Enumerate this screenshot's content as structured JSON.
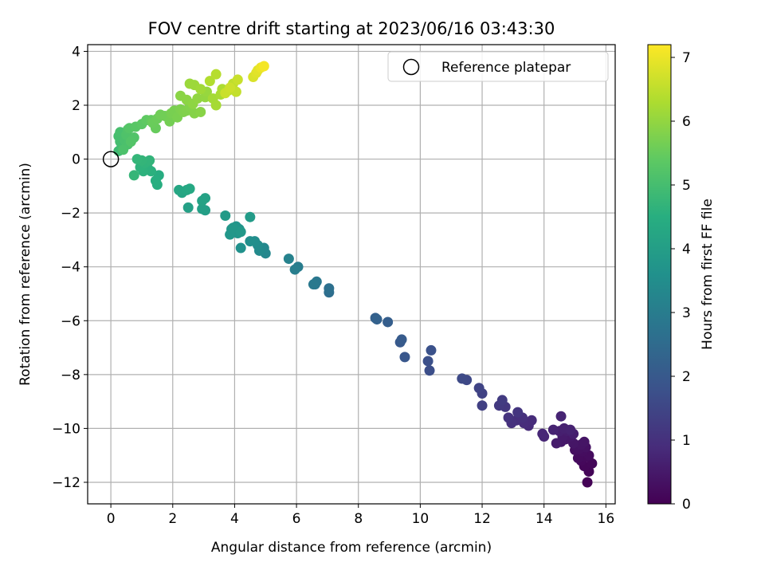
{
  "chart_data": {
    "type": "scatter",
    "title": "FOV centre drift starting at 2023/06/16 03:43:30",
    "xlabel": "Angular distance from reference (arcmin)",
    "ylabel": "Rotation from reference (arcmin)",
    "xlim": [
      -0.75,
      16.3
    ],
    "ylim": [
      -12.8,
      4.25
    ],
    "xticks": [
      0,
      2,
      4,
      6,
      8,
      10,
      12,
      14,
      16
    ],
    "yticks": [
      -12,
      -10,
      -8,
      -6,
      -4,
      -2,
      0,
      2,
      4
    ],
    "grid": true,
    "legend": {
      "entries": [
        "Reference platepar"
      ],
      "placement": "top-right"
    },
    "reference_point": {
      "x": 0,
      "y": 0,
      "marker": "open-circle"
    },
    "colorbar": {
      "label": "Hours from first FF file",
      "colormap": "viridis",
      "range": [
        0,
        7.2
      ],
      "ticks": [
        0,
        1,
        2,
        3,
        4,
        5,
        6,
        7
      ]
    },
    "series": [
      {
        "points": [
          [
            15.4,
            -12.0,
            0.05
          ],
          [
            15.45,
            -11.6,
            0.08
          ],
          [
            15.3,
            -11.4,
            0.1
          ],
          [
            15.55,
            -11.3,
            0.12
          ],
          [
            15.2,
            -11.2,
            0.15
          ],
          [
            15.35,
            -11.05,
            0.18
          ],
          [
            15.1,
            -11.1,
            0.2
          ],
          [
            15.45,
            -11.0,
            0.22
          ],
          [
            15.25,
            -10.85,
            0.25
          ],
          [
            15.0,
            -10.8,
            0.28
          ],
          [
            15.15,
            -10.75,
            0.3
          ],
          [
            15.35,
            -10.7,
            0.32
          ],
          [
            15.05,
            -10.65,
            0.35
          ],
          [
            15.2,
            -10.6,
            0.38
          ],
          [
            15.3,
            -10.5,
            0.4
          ],
          [
            14.95,
            -10.55,
            0.42
          ],
          [
            14.7,
            -10.4,
            0.45
          ],
          [
            14.85,
            -10.3,
            0.48
          ],
          [
            14.55,
            -10.5,
            0.5
          ],
          [
            14.6,
            -10.3,
            0.52
          ],
          [
            14.4,
            -10.55,
            0.55
          ],
          [
            14.75,
            -10.1,
            0.58
          ],
          [
            14.95,
            -10.2,
            0.6
          ],
          [
            14.5,
            -10.1,
            0.62
          ],
          [
            14.65,
            -10.0,
            0.65
          ],
          [
            14.85,
            -10.05,
            0.68
          ],
          [
            14.3,
            -10.05,
            0.7
          ],
          [
            14.55,
            -9.55,
            0.72
          ],
          [
            14.0,
            -10.3,
            0.75
          ],
          [
            13.95,
            -10.2,
            0.78
          ],
          [
            13.5,
            -9.9,
            0.85
          ],
          [
            13.6,
            -9.7,
            0.88
          ],
          [
            13.35,
            -9.8,
            0.9
          ],
          [
            13.1,
            -9.7,
            0.95
          ],
          [
            13.3,
            -9.6,
            0.97
          ],
          [
            12.95,
            -9.8,
            1.0
          ],
          [
            12.85,
            -9.6,
            1.05
          ],
          [
            13.15,
            -9.4,
            1.1
          ],
          [
            12.75,
            -9.2,
            1.15
          ],
          [
            12.55,
            -9.15,
            1.2
          ],
          [
            12.65,
            -8.95,
            1.25
          ],
          [
            12.0,
            -9.15,
            1.35
          ],
          [
            12.0,
            -8.7,
            1.4
          ],
          [
            11.9,
            -8.5,
            1.45
          ],
          [
            11.5,
            -8.2,
            1.55
          ],
          [
            11.35,
            -8.15,
            1.6
          ],
          [
            10.3,
            -7.85,
            1.7
          ],
          [
            10.25,
            -7.5,
            1.75
          ],
          [
            10.35,
            -7.1,
            1.8
          ],
          [
            9.5,
            -7.35,
            1.95
          ],
          [
            9.35,
            -6.8,
            2.0
          ],
          [
            9.4,
            -6.7,
            2.05
          ],
          [
            8.95,
            -6.05,
            2.15
          ],
          [
            8.55,
            -5.9,
            2.2
          ],
          [
            8.6,
            -5.95,
            2.25
          ],
          [
            7.05,
            -4.95,
            2.6
          ],
          [
            7.05,
            -4.8,
            2.65
          ],
          [
            6.6,
            -4.65,
            2.8
          ],
          [
            6.65,
            -4.55,
            2.85
          ],
          [
            6.55,
            -4.65,
            2.9
          ],
          [
            6.05,
            -4.0,
            3.0
          ],
          [
            5.95,
            -4.1,
            3.05
          ],
          [
            5.75,
            -3.7,
            3.15
          ],
          [
            5.0,
            -3.5,
            3.3
          ],
          [
            4.95,
            -3.3,
            3.35
          ],
          [
            4.8,
            -3.4,
            3.4
          ],
          [
            4.75,
            -3.2,
            3.45
          ],
          [
            4.65,
            -3.05,
            3.5
          ],
          [
            4.5,
            -3.05,
            3.55
          ],
          [
            4.2,
            -3.3,
            3.6
          ],
          [
            4.15,
            -2.6,
            3.65
          ],
          [
            4.05,
            -2.5,
            3.7
          ],
          [
            4.1,
            -2.75,
            3.72
          ],
          [
            3.9,
            -2.6,
            3.75
          ],
          [
            3.85,
            -2.8,
            3.78
          ],
          [
            3.95,
            -2.55,
            3.8
          ],
          [
            4.2,
            -2.7,
            3.82
          ],
          [
            3.7,
            -2.1,
            3.88
          ],
          [
            4.5,
            -2.15,
            3.9
          ],
          [
            3.05,
            -1.9,
            4.0
          ],
          [
            2.95,
            -1.85,
            4.02
          ],
          [
            2.5,
            -1.8,
            4.05
          ],
          [
            3.05,
            -1.45,
            4.1
          ],
          [
            2.95,
            -1.55,
            4.12
          ],
          [
            2.3,
            -1.25,
            4.2
          ],
          [
            2.2,
            -1.15,
            4.25
          ],
          [
            2.45,
            -1.15,
            4.28
          ],
          [
            2.55,
            -1.1,
            4.3
          ],
          [
            1.55,
            -0.6,
            4.45
          ],
          [
            1.5,
            -0.95,
            4.48
          ],
          [
            1.45,
            -0.8,
            4.5
          ],
          [
            1.3,
            -0.45,
            4.55
          ],
          [
            1.2,
            -0.35,
            4.58
          ],
          [
            1.05,
            -0.45,
            4.6
          ],
          [
            0.95,
            -0.3,
            4.62
          ],
          [
            1.1,
            -0.15,
            4.65
          ],
          [
            1.25,
            -0.05,
            4.68
          ],
          [
            1.0,
            -0.05,
            4.7
          ],
          [
            0.85,
            -0.0,
            4.72
          ],
          [
            0.75,
            -0.6,
            4.74
          ],
          [
            0.25,
            0.3,
            4.9
          ],
          [
            0.35,
            0.45,
            4.95
          ],
          [
            0.3,
            0.65,
            5.0
          ],
          [
            0.25,
            0.85,
            5.02
          ],
          [
            0.3,
            1.0,
            5.05
          ],
          [
            0.45,
            0.7,
            5.08
          ],
          [
            0.55,
            0.55,
            5.1
          ],
          [
            0.4,
            0.35,
            5.12
          ],
          [
            0.5,
            0.9,
            5.15
          ],
          [
            0.55,
            1.1,
            5.18
          ],
          [
            0.75,
            0.8,
            5.2
          ],
          [
            0.65,
            0.65,
            5.22
          ],
          [
            0.6,
            1.15,
            5.25
          ],
          [
            0.8,
            1.2,
            5.3
          ],
          [
            1.0,
            1.3,
            5.35
          ],
          [
            1.15,
            1.45,
            5.4
          ],
          [
            1.3,
            1.45,
            5.45
          ],
          [
            1.45,
            1.15,
            5.5
          ],
          [
            1.35,
            1.35,
            5.52
          ],
          [
            1.5,
            1.5,
            5.55
          ],
          [
            1.6,
            1.65,
            5.6
          ],
          [
            1.75,
            1.6,
            5.62
          ],
          [
            1.9,
            1.4,
            5.65
          ],
          [
            1.95,
            1.7,
            5.68
          ],
          [
            2.05,
            1.8,
            5.7
          ],
          [
            2.15,
            1.55,
            5.72
          ],
          [
            2.25,
            1.85,
            5.75
          ],
          [
            2.35,
            1.75,
            5.78
          ],
          [
            2.45,
            1.8,
            5.8
          ],
          [
            2.55,
            1.95,
            5.82
          ],
          [
            2.7,
            1.7,
            5.85
          ],
          [
            2.9,
            1.75,
            5.88
          ],
          [
            2.25,
            2.35,
            5.9
          ],
          [
            2.45,
            2.2,
            5.92
          ],
          [
            2.65,
            2.05,
            5.95
          ],
          [
            2.8,
            2.25,
            5.98
          ],
          [
            3.05,
            2.3,
            6.0
          ],
          [
            3.1,
            2.5,
            6.05
          ],
          [
            2.55,
            2.8,
            6.1
          ],
          [
            2.7,
            2.75,
            6.12
          ],
          [
            2.9,
            2.6,
            6.15
          ],
          [
            3.3,
            2.25,
            6.2
          ],
          [
            3.4,
            2.0,
            6.22
          ],
          [
            3.55,
            2.4,
            6.25
          ],
          [
            3.6,
            2.6,
            6.3
          ],
          [
            3.2,
            2.9,
            6.35
          ],
          [
            3.4,
            3.15,
            6.4
          ],
          [
            3.8,
            2.55,
            6.45
          ],
          [
            3.95,
            2.8,
            6.5
          ],
          [
            4.05,
            2.5,
            6.55
          ],
          [
            4.1,
            2.95,
            6.6
          ],
          [
            3.7,
            2.45,
            6.62
          ],
          [
            3.85,
            2.65,
            6.65
          ],
          [
            4.6,
            3.05,
            6.8
          ],
          [
            4.7,
            3.2,
            6.85
          ],
          [
            4.75,
            3.3,
            6.9
          ],
          [
            4.85,
            3.4,
            7.0
          ],
          [
            4.95,
            3.45,
            7.1
          ]
        ]
      }
    ]
  }
}
